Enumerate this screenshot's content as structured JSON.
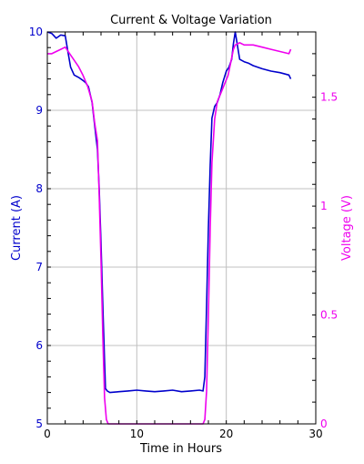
{
  "chart_data": {
    "type": "line",
    "title": "Current & Voltage Variation",
    "xlabel": "Time in Hours",
    "ylabel_left": "Current (A)",
    "ylabel_right": "Voltage (V)",
    "xlim": [
      0,
      30
    ],
    "ylim_left": [
      5,
      10
    ],
    "ylim_right": [
      0,
      1.8
    ],
    "x_ticks": [
      "0",
      "10",
      "20",
      "30"
    ],
    "y_left_ticks": [
      "5",
      "6",
      "7",
      "8",
      "9",
      "10"
    ],
    "y_right_ticks": [
      "0",
      "0.5",
      "1",
      "1.5"
    ],
    "grid": true,
    "colors": {
      "current": "#0000cc",
      "voltage": "#ee00ee",
      "axis": "#000000",
      "grid": "#c0c0c0"
    },
    "series": [
      {
        "axis": "left",
        "x": [
          0,
          0.5,
          1,
          1.5,
          2,
          2.3,
          2.6,
          3,
          3.5,
          4,
          4.3,
          4.6,
          5,
          5.3,
          5.6,
          5.8,
          6.0,
          6.2,
          6.4,
          6.5,
          6.7,
          7,
          8,
          9,
          10,
          11,
          12,
          13,
          14,
          15,
          16,
          17,
          17.4,
          17.6,
          17.8,
          18.0,
          18.2,
          18.4,
          18.7,
          19,
          19.3,
          19.6,
          20,
          20.3,
          20.6,
          20.8,
          21,
          21.5,
          22,
          22.5,
          23,
          24,
          25,
          26,
          27,
          27.2
        ],
        "values": [
          10.0,
          9.98,
          9.92,
          9.96,
          9.95,
          9.75,
          9.55,
          9.45,
          9.42,
          9.38,
          9.35,
          9.3,
          9.1,
          8.8,
          8.5,
          8.0,
          7.3,
          6.5,
          5.8,
          5.45,
          5.42,
          5.4,
          5.41,
          5.42,
          5.43,
          5.42,
          5.41,
          5.42,
          5.43,
          5.41,
          5.42,
          5.43,
          5.42,
          5.6,
          6.5,
          7.5,
          8.3,
          8.9,
          9.05,
          9.1,
          9.2,
          9.35,
          9.5,
          9.55,
          9.65,
          9.85,
          10.0,
          9.65,
          9.62,
          9.6,
          9.57,
          9.53,
          9.5,
          9.48,
          9.45,
          9.4
        ]
      },
      {
        "axis": "right",
        "x": [
          0,
          0.5,
          1,
          1.5,
          2,
          2.5,
          3,
          3.5,
          4,
          4.5,
          5,
          5.3,
          5.6,
          5.8,
          6.0,
          6.2,
          6.4,
          6.6,
          6.8,
          7,
          8,
          9,
          10,
          11,
          12,
          13,
          14,
          15,
          16,
          17,
          17.4,
          17.6,
          17.8,
          18.0,
          18.2,
          18.4,
          18.7,
          19,
          19.4,
          19.8,
          20.2,
          20.5,
          20.8,
          21,
          21.5,
          22,
          23,
          24,
          25,
          26,
          27,
          27.2
        ],
        "values": [
          1.7,
          1.7,
          1.71,
          1.72,
          1.73,
          1.7,
          1.67,
          1.64,
          1.6,
          1.55,
          1.48,
          1.38,
          1.3,
          1.05,
          0.75,
          0.4,
          0.12,
          0.02,
          0.0,
          0.0,
          0.0,
          0.0,
          0.0,
          0.0,
          0.0,
          0.0,
          0.0,
          0.0,
          0.0,
          0.0,
          0.0,
          0.02,
          0.15,
          0.5,
          0.9,
          1.2,
          1.4,
          1.48,
          1.52,
          1.56,
          1.6,
          1.66,
          1.72,
          1.74,
          1.75,
          1.74,
          1.74,
          1.73,
          1.72,
          1.71,
          1.7,
          1.72
        ]
      }
    ]
  }
}
